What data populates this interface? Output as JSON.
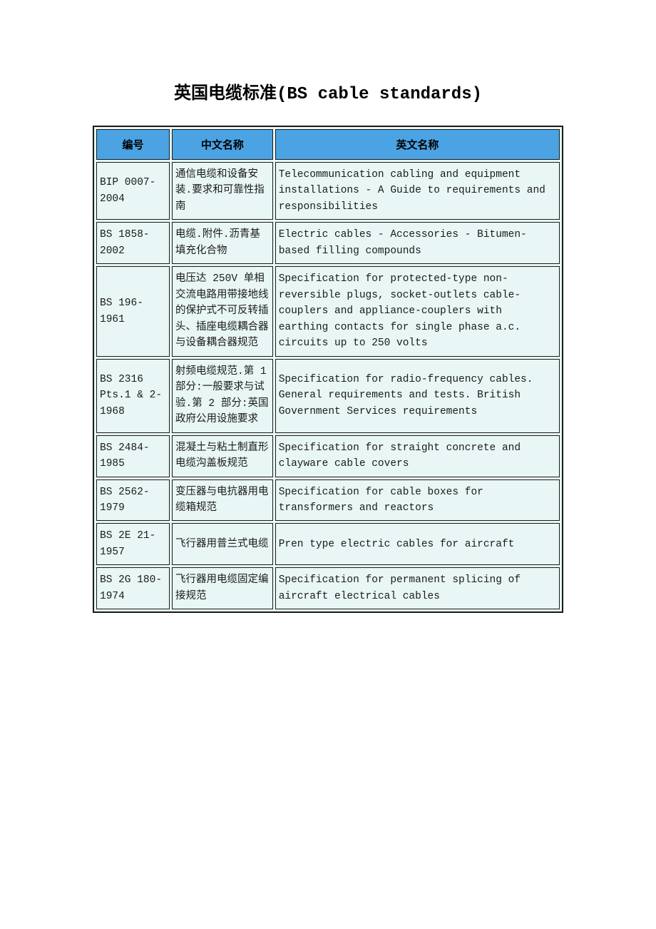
{
  "title": "英国电缆标准(BS cable standards)",
  "colors": {
    "header_bg": "#4ba3e3",
    "cell_bg": "#e8f7f5",
    "border": "#1a1a1a",
    "text": "#1a1a1a"
  },
  "table": {
    "columns": [
      {
        "key": "code",
        "label": "编号"
      },
      {
        "key": "cn",
        "label": "中文名称"
      },
      {
        "key": "en",
        "label": "英文名称"
      }
    ],
    "rows": [
      {
        "code": "BIP 0007-2004",
        "cn": "通信电缆和设备安装.要求和可靠性指南",
        "en": "Telecommunication cabling and equipment installations - A Guide to requirements and responsibilities"
      },
      {
        "code": "BS 1858-2002",
        "cn": "电缆.附件.沥青基填充化合物",
        "en": "Electric cables - Accessories - Bitumen-based filling compounds"
      },
      {
        "code": "BS 196-1961",
        "cn": "电压达 250V 单相交流电路用带接地线的保护式不可反转插头、插座电缆耦合器与设备耦合器规范",
        "en": "Specification for protected-type non-reversible plugs, socket-outlets cable-couplers and appliance-couplers with earthing contacts for single phase a.c. circuits up to 250 volts"
      },
      {
        "code": "BS 2316 Pts.1 & 2-1968",
        "cn": "射频电缆规范.第 1 部分:一般要求与试验.第 2 部分:英国政府公用设施要求",
        "en": "Specification for radio-frequency cables. General requirements and tests. British Government Services requirements"
      },
      {
        "code": "BS 2484-1985",
        "cn": "混凝土与粘土制直形电缆沟盖板规范",
        "en": "Specification for straight concrete and clayware cable covers"
      },
      {
        "code": "BS 2562-1979",
        "cn": "变压器与电抗器用电缆箱规范",
        "en": "Specification for cable boxes for transformers and reactors"
      },
      {
        "code": "BS 2E 21-1957",
        "cn": "飞行器用普兰式电缆",
        "en": "Pren type electric cables for aircraft"
      },
      {
        "code": "BS 2G 180-1974",
        "cn": "飞行器用电缆固定编接规范",
        "en": "Specification for permanent splicing of aircraft electrical cables"
      }
    ]
  }
}
